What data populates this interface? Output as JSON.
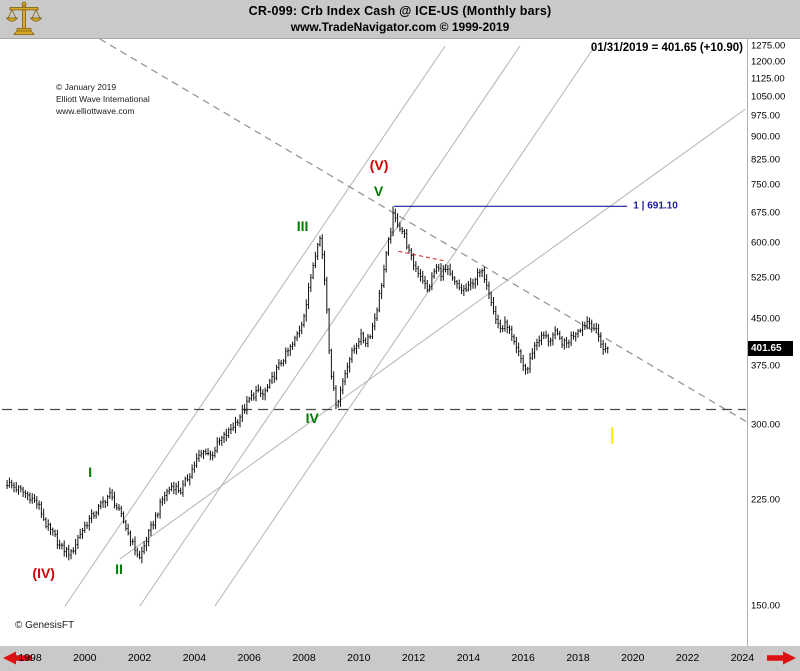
{
  "header": {
    "line1": "CR-099:  Crb Index Cash @ ICE-US  (Monthly bars)",
    "line2": "www.TradeNavigator.com © 1999-2019",
    "readout": "01/31/2019 = 401.65 (+10.90)"
  },
  "watermark": {
    "line1": "© January 2019",
    "line2": "Elliott Wave International",
    "line3": "www.elliottwave.com"
  },
  "footer": {
    "credit": "© GenesisFT"
  },
  "price_box": {
    "value": "401.65"
  },
  "colors": {
    "background": "#c9c9c9",
    "plot_background": "#ffffff",
    "bar": "#111111",
    "wave_green": "#007a00",
    "wave_red": "#d00000",
    "target_blue": "#1c1c9c",
    "channel_gray": "#b3b3b3",
    "dashed_gray": "#8f8f8f",
    "dashed_dark": "#4a4a4a",
    "arrow_red": "#dd1111",
    "cursor_yellow": "#ffe400",
    "logo_gold": "#d9a925"
  },
  "chart_data": {
    "type": "bar",
    "subtype": "ohlc-monthly",
    "title": "Crb Index Cash @ ICE-US (Monthly bars)",
    "xlabel": "",
    "ylabel": "",
    "y_scale": "log",
    "x_range": [
      1996.98,
      2024.13
    ],
    "y_range": [
      128.8,
      1309.6
    ],
    "x_ticks": [
      "1998",
      "2000",
      "2002",
      "2004",
      "2006",
      "2008",
      "2010",
      "2012",
      "2014",
      "2016",
      "2018",
      "2020",
      "2022",
      "2024"
    ],
    "y_ticks": [
      1275,
      1200,
      1125,
      1050,
      975,
      900,
      825,
      750,
      675,
      600,
      525,
      450,
      375,
      300,
      225,
      150
    ],
    "first_month": 1997.1667,
    "last_month": 2019.0417,
    "last_close": 401.65,
    "peak": {
      "year": 2011.29,
      "high": 691.1
    },
    "close_keypoints": [
      [
        1997.17,
        240
      ],
      [
        1997.6,
        234
      ],
      [
        1998.0,
        228
      ],
      [
        1998.3,
        221
      ],
      [
        1998.6,
        204
      ],
      [
        1998.9,
        196
      ],
      [
        1999.1,
        188
      ],
      [
        1999.5,
        183
      ],
      [
        1999.8,
        197
      ],
      [
        2000.1,
        207
      ],
      [
        2000.5,
        218
      ],
      [
        2000.9,
        230
      ],
      [
        2001.1,
        222
      ],
      [
        2001.4,
        208
      ],
      [
        2001.75,
        190
      ],
      [
        2002.0,
        180
      ],
      [
        2002.3,
        196
      ],
      [
        2002.6,
        212
      ],
      [
        2002.9,
        229
      ],
      [
        2003.2,
        238
      ],
      [
        2003.5,
        233
      ],
      [
        2003.8,
        247
      ],
      [
        2004.1,
        263
      ],
      [
        2004.4,
        272
      ],
      [
        2004.6,
        266
      ],
      [
        2004.9,
        281
      ],
      [
        2005.2,
        290
      ],
      [
        2005.5,
        302
      ],
      [
        2005.8,
        317
      ],
      [
        2006.0,
        330
      ],
      [
        2006.25,
        340
      ],
      [
        2006.5,
        336
      ],
      [
        2006.75,
        350
      ],
      [
        2007.0,
        370
      ],
      [
        2007.3,
        390
      ],
      [
        2007.6,
        408
      ],
      [
        2007.9,
        440
      ],
      [
        2008.1,
        480
      ],
      [
        2008.3,
        545
      ],
      [
        2008.5,
        605
      ],
      [
        2008.58,
        612
      ],
      [
        2008.7,
        560
      ],
      [
        2008.83,
        470
      ],
      [
        2008.95,
        380
      ],
      [
        2009.1,
        336
      ],
      [
        2009.2,
        323
      ],
      [
        2009.4,
        352
      ],
      [
        2009.6,
        381
      ],
      [
        2009.85,
        403
      ],
      [
        2010.05,
        420
      ],
      [
        2010.25,
        413
      ],
      [
        2010.45,
        428
      ],
      [
        2010.65,
        465
      ],
      [
        2010.85,
        520
      ],
      [
        2011.05,
        590
      ],
      [
        2011.25,
        665
      ],
      [
        2011.45,
        645
      ],
      [
        2011.65,
        622
      ],
      [
        2011.85,
        575
      ],
      [
        2012.05,
        548
      ],
      [
        2012.3,
        528
      ],
      [
        2012.5,
        500
      ],
      [
        2012.65,
        522
      ],
      [
        2012.8,
        548
      ],
      [
        2013.0,
        536
      ],
      [
        2013.2,
        542
      ],
      [
        2013.45,
        518
      ],
      [
        2013.7,
        503
      ],
      [
        2013.95,
        502
      ],
      [
        2014.2,
        522
      ],
      [
        2014.45,
        538
      ],
      [
        2014.6,
        528
      ],
      [
        2014.8,
        492
      ],
      [
        2015.0,
        448
      ],
      [
        2015.2,
        432
      ],
      [
        2015.4,
        442
      ],
      [
        2015.65,
        408
      ],
      [
        2015.85,
        392
      ],
      [
        2016.05,
        372
      ],
      [
        2016.15,
        369
      ],
      [
        2016.35,
        400
      ],
      [
        2016.55,
        416
      ],
      [
        2016.75,
        421
      ],
      [
        2016.95,
        414
      ],
      [
        2017.15,
        426
      ],
      [
        2017.35,
        414
      ],
      [
        2017.55,
        407
      ],
      [
        2017.75,
        419
      ],
      [
        2017.95,
        430
      ],
      [
        2018.15,
        438
      ],
      [
        2018.35,
        446
      ],
      [
        2018.55,
        438
      ],
      [
        2018.7,
        424
      ],
      [
        2018.85,
        410
      ],
      [
        2018.95,
        396
      ],
      [
        2019.04,
        401.65
      ]
    ],
    "wave_labels": [
      {
        "text": "(IV)",
        "color": "#d00000",
        "year": 1998.5,
        "value": 170
      },
      {
        "text": "I",
        "color": "#007a00",
        "year": 2000.2,
        "value": 250
      },
      {
        "text": "II",
        "color": "#007a00",
        "year": 2001.25,
        "value": 173
      },
      {
        "text": "III",
        "color": "#007a00",
        "year": 2007.95,
        "value": 640
      },
      {
        "text": "IV",
        "color": "#007a00",
        "year": 2008.3,
        "value": 308
      },
      {
        "text": "V",
        "color": "#007a00",
        "year": 2010.72,
        "value": 733
      },
      {
        "text": "(V)",
        "color": "#d00000",
        "year": 2010.74,
        "value": 808
      }
    ],
    "target_line": {
      "label": "1 | 691.10",
      "value": 691.1,
      "from_year": 2011.29,
      "to_year": 2019.8
    },
    "trendlines": [
      {
        "name": "channel-line-1",
        "style": "solid",
        "dash": "",
        "width": 1,
        "color": "#b3b3b3",
        "p1": [
          1999.28,
          150
        ],
        "p2": [
          2013.15,
          1275
        ]
      },
      {
        "name": "channel-line-2",
        "style": "solid",
        "dash": "",
        "width": 1,
        "color": "#b3b3b3",
        "p1": [
          2002.01,
          150
        ],
        "p2": [
          2015.88,
          1275
        ]
      },
      {
        "name": "channel-line-3",
        "style": "solid",
        "dash": "",
        "width": 1,
        "color": "#b3b3b3",
        "p1": [
          2004.75,
          150
        ],
        "p2": [
          2018.62,
          1275
        ]
      },
      {
        "name": "support-line",
        "style": "solid",
        "dash": "",
        "width": 1,
        "color": "#b3b3b3",
        "p1": [
          2001.28,
          179.5
        ],
        "p2": [
          2024.1,
          1002
        ]
      },
      {
        "name": "declining-dashed",
        "style": "dashed",
        "dash": "7 5",
        "width": 1.2,
        "color": "#8f8f8f",
        "p1": [
          2000.55,
          1310
        ],
        "p2": [
          2024.6,
          295
        ]
      },
      {
        "name": "horizontal-dashed",
        "style": "dashed",
        "dash": "10 6",
        "width": 1.2,
        "color": "#4a4a4a",
        "p1": [
          1996.98,
          318
        ],
        "p2": [
          2024.13,
          318
        ]
      }
    ],
    "red_dash_segment": {
      "p1": [
        2011.45,
        582
      ],
      "p2": [
        2013.2,
        560
      ],
      "color": "#cc2222"
    },
    "cursor_mark": {
      "year": 2019.25,
      "v1": 297,
      "v2": 279,
      "color": "#ffe400"
    },
    "grid": "off",
    "legend": "none"
  }
}
